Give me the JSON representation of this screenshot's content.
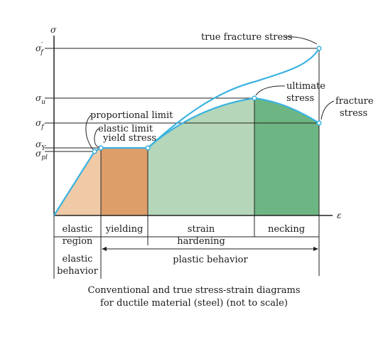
{
  "axes": {
    "y_symbol": "σ",
    "x_symbol": "ε",
    "stress_levels": [
      {
        "base": "σ",
        "sub": "f",
        "prime": "′"
      },
      {
        "base": "σ",
        "sub": "u",
        "prime": ""
      },
      {
        "base": "σ",
        "sub": "f",
        "prime": ""
      },
      {
        "base": "σ",
        "sub": "Y",
        "prime": ""
      },
      {
        "base": "σ",
        "sub": "pl",
        "prime": ""
      }
    ]
  },
  "annotations": {
    "true_fracture_stress": "true fracture stress",
    "ultimate_1": "ultimate",
    "ultimate_2": "stress",
    "fracture_1": "fracture",
    "fracture_2": "stress",
    "proportional_limit": "proportional limit",
    "elastic_limit": "elastic limit",
    "yield_stress": "yield stress"
  },
  "regions": {
    "elastic_1": "elastic",
    "elastic_2": "region",
    "yielding": "yielding",
    "strain_1": "strain",
    "strain_2": "hardening",
    "necking": "necking"
  },
  "behavior": {
    "elastic_1": "elastic",
    "elastic_2": "behavior",
    "plastic": "plastic behavior"
  },
  "caption": {
    "line1": "Conventional and true stress-strain diagrams",
    "line2": "for ductile material (steel) (not to scale)"
  },
  "colors": {
    "elastic_fill": "#f0c9a6",
    "yielding_fill": "#dd9e6a",
    "hardening_fill": "#b5d6b9",
    "necking_fill": "#6db582",
    "curve": "#3bb3e0",
    "axis": "#222222"
  }
}
